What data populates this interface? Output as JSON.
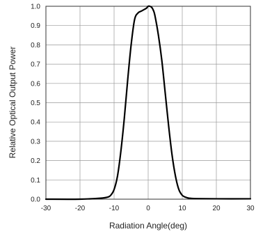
{
  "chart_data": {
    "type": "line",
    "title": "",
    "xlabel": "Radiation Angle(deg)",
    "ylabel": "Relative Optical Output Power",
    "xlim": [
      -30,
      30
    ],
    "ylim": [
      0,
      1.0
    ],
    "x_ticks": [
      "-30",
      "-20",
      "-10",
      "0",
      "10",
      "20",
      "30"
    ],
    "y_ticks": [
      "0.0",
      "0.1",
      "0.2",
      "0.3",
      "0.4",
      "0.5",
      "0.6",
      "0.7",
      "0.8",
      "0.9",
      "1.0"
    ],
    "grid": true,
    "series": [
      {
        "x": [
          -30,
          -20,
          -14,
          -12,
          -11,
          -10,
          -9,
          -8,
          -7,
          -6,
          -5,
          -4,
          -3,
          -2,
          -1.5,
          -1,
          -0.5,
          0,
          0.5,
          1,
          1.5,
          2,
          3,
          4,
          5,
          6,
          7,
          8,
          9,
          10,
          11,
          12,
          14,
          20,
          30
        ],
        "y": [
          0.0,
          0.0,
          0.005,
          0.01,
          0.02,
          0.05,
          0.12,
          0.25,
          0.42,
          0.62,
          0.8,
          0.93,
          0.965,
          0.975,
          0.98,
          0.985,
          0.99,
          1.0,
          1.0,
          0.995,
          0.98,
          0.95,
          0.85,
          0.72,
          0.55,
          0.38,
          0.23,
          0.12,
          0.05,
          0.02,
          0.01,
          0.005,
          0.003,
          0.002,
          0.002
        ],
        "color": "#000000"
      }
    ]
  }
}
